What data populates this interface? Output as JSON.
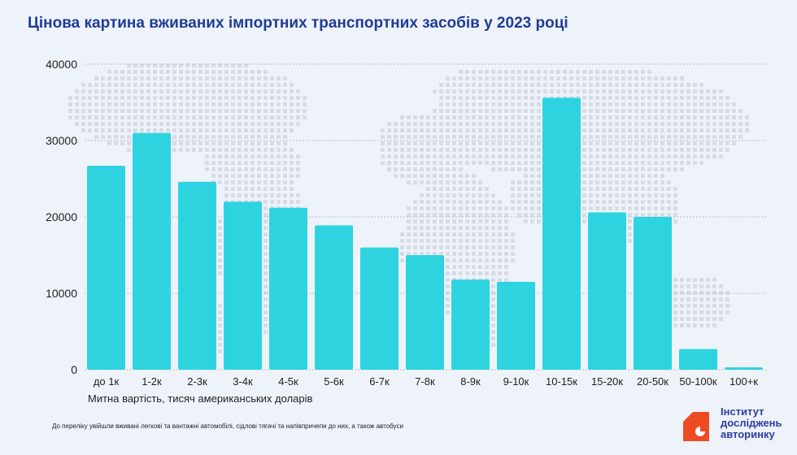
{
  "title": "Цінова картина вживаних імпортних транспортних засобів у 2023 році",
  "footnote": "До переліку увійшли вживані легкові та вантажні автомобілі, сідлові тягачі та напівпричепи до них, а також автобуси",
  "logo": {
    "lines": [
      "Інститут",
      "досліджень",
      "авторинку"
    ],
    "color": "#2b3fa0",
    "accent": "#ef4b23"
  },
  "chart_data": {
    "type": "bar",
    "title": "Цінова картина вживаних імпортних транспортних засобів у 2023 році",
    "xlabel": "Митна вартість, тисяч американських доларів",
    "ylabel": "",
    "categories": [
      "до 1к",
      "1-2к",
      "2-3к",
      "3-4к",
      "4-5к",
      "5-6к",
      "6-7к",
      "7-8к",
      "8-9к",
      "9-10к",
      "10-15к",
      "15-20к",
      "20-50к",
      "50-100к",
      "100+к"
    ],
    "values": [
      26700,
      31000,
      24600,
      22000,
      21200,
      18900,
      16000,
      15000,
      11800,
      11500,
      35600,
      20600,
      20000,
      2700,
      300
    ],
    "ylim": [
      0,
      40000
    ],
    "yticks": [
      "0",
      "10000",
      "20000",
      "30000",
      "40000"
    ],
    "ytick_values": [
      0,
      10000,
      20000,
      30000,
      40000
    ],
    "grid": true,
    "bar_color": "#2dd4e0",
    "grid_color": "#b8bfd1"
  }
}
